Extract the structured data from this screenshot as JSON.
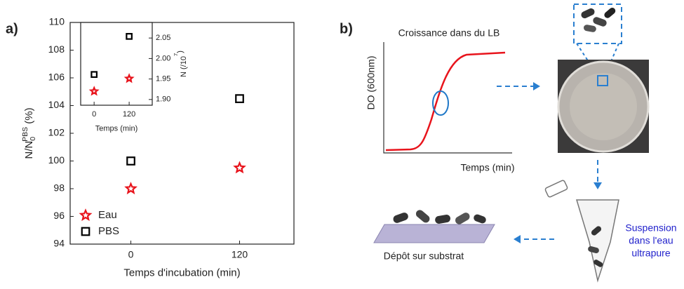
{
  "panel_labels": [
    "a)",
    "b)"
  ],
  "chart_data": [
    {
      "type": "scatter",
      "xlabel": "Temps d'incubation (min)",
      "ylabel": {
        "main": "N/N",
        "sub": "0",
        "sup": "PBS",
        "unit": " (%)"
      },
      "xlim": [
        -67,
        180
      ],
      "ylim": [
        94,
        110
      ],
      "xticks": [
        0,
        120
      ],
      "yticks": [
        94,
        96,
        98,
        100,
        102,
        104,
        106,
        108,
        110
      ],
      "legend": "lower left",
      "series": [
        {
          "name": "Eau",
          "color": "#e8141c",
          "marker": "star",
          "x": [
            0,
            120
          ],
          "values": [
            98.0,
            99.5
          ]
        },
        {
          "name": "PBS",
          "color": "#000000",
          "marker": "square",
          "x": [
            0,
            120
          ],
          "values": [
            100.0,
            104.5
          ]
        }
      ]
    },
    {
      "type": "scatter",
      "xlabel": "Temps (min)",
      "ylabel": {
        "main": "N (/10",
        "sup": "7",
        "unit": ")"
      },
      "xlim": [
        -46,
        199
      ],
      "ylim": [
        1.886,
        2.088
      ],
      "xticks": [
        0,
        120
      ],
      "yticks": [
        {
          "value": 1.9,
          "label": "1.90"
        },
        1.95,
        {
          "value": 2.0,
          "label": "2.00"
        },
        2.05
      ],
      "legend": "none",
      "series": [
        {
          "name": "Eau",
          "color": "#e8141c",
          "marker": "star",
          "x": [
            0,
            120
          ],
          "values": [
            1.92,
            1.951
          ]
        },
        {
          "name": "PBS",
          "color": "#000000",
          "marker": "square",
          "x": [
            0,
            120
          ],
          "values": [
            1.961,
            2.054
          ]
        }
      ]
    }
  ],
  "diagram": {
    "growth_title": "Croissance dans du LB",
    "growth_ylabel": "DO (600nm)",
    "growth_xlabel": "Temps (min)",
    "suspension": [
      "Suspension",
      "dans l'eau",
      "ultrapure"
    ],
    "deposit": "Dépôt sur substrat"
  }
}
